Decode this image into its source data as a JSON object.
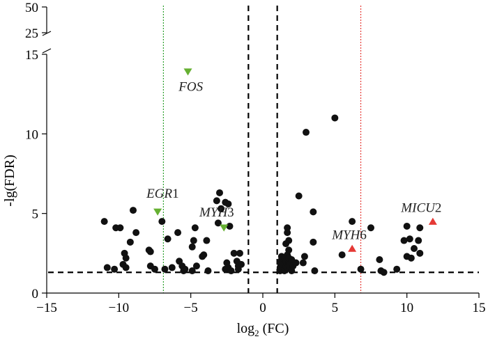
{
  "chart_data": {
    "type": "scatter",
    "title": "",
    "xlabel_base": "log",
    "xlabel_sub": "2",
    "xlabel_rest": " (FC)",
    "ylabel": "-lg(FDR)",
    "xlim": [
      -15,
      15
    ],
    "ylim": [
      0,
      15
    ],
    "ylim_break": [
      25,
      50
    ],
    "x_ticks": [
      -15,
      -10,
      -5,
      0,
      5,
      10,
      15
    ],
    "x_tick_labels": [
      "−15",
      "−10",
      "−5",
      "0",
      "5",
      "10",
      "15"
    ],
    "y_ticks": [
      0,
      5,
      10,
      15
    ],
    "y_tick_labels": [
      "0",
      "5",
      "10",
      "15"
    ],
    "y_break_ticks": [
      25,
      50
    ],
    "y_break_tick_labels": [
      "25",
      "50"
    ],
    "thresholds": {
      "fc_inner": [
        -1,
        1
      ],
      "fdr_line": 1.3,
      "green_line": -6.9,
      "red_line": 6.8
    },
    "colors": {
      "points": "#111111",
      "down_marker": "#66b032",
      "up_marker": "#e53935",
      "green_line": "#2ea02e",
      "red_line": "#e53935",
      "dashed": "#000000"
    },
    "points": [
      [
        -11,
        4.5
      ],
      [
        -10.2,
        4.1
      ],
      [
        -9.9,
        4.1
      ],
      [
        -9.7,
        1.8
      ],
      [
        -9.6,
        2.5
      ],
      [
        -9.5,
        2.2
      ],
      [
        -9.5,
        1.6
      ],
      [
        -10.3,
        1.5
      ],
      [
        -10.8,
        1.6
      ],
      [
        -9.2,
        3.2
      ],
      [
        -9,
        5.2
      ],
      [
        -8.8,
        3.8
      ],
      [
        -7.9,
        2.7
      ],
      [
        -7.8,
        2.6
      ],
      [
        -7.8,
        1.7
      ],
      [
        -7.5,
        1.5
      ],
      [
        -7,
        4.5
      ],
      [
        -6.8,
        1.5
      ],
      [
        -6.3,
        1.6
      ],
      [
        -6.6,
        3.4
      ],
      [
        -5.9,
        3.8
      ],
      [
        -5.8,
        2
      ],
      [
        -5.6,
        1.7
      ],
      [
        -5.5,
        1.4
      ],
      [
        -5.4,
        1.5
      ],
      [
        -4.9,
        2.9
      ],
      [
        -4.8,
        3.3
      ],
      [
        -4.7,
        4.1
      ],
      [
        -4.9,
        1.4
      ],
      [
        -4.6,
        1.7
      ],
      [
        -4.2,
        2.3
      ],
      [
        -4.1,
        2.4
      ],
      [
        -3.9,
        3.3
      ],
      [
        -3.8,
        1.4
      ],
      [
        -3.2,
        5.8
      ],
      [
        -3,
        6.3
      ],
      [
        -3.1,
        4.4
      ],
      [
        -2.9,
        5.3
      ],
      [
        -2.6,
        5.7
      ],
      [
        -2.4,
        5.6
      ],
      [
        -2.3,
        4.2
      ],
      [
        -2.6,
        1.5
      ],
      [
        -2.5,
        1.9
      ],
      [
        -2.4,
        1.6
      ],
      [
        -2.2,
        1.4
      ],
      [
        -2,
        2.5
      ],
      [
        -1.8,
        2
      ],
      [
        -1.7,
        1.7
      ],
      [
        -1.6,
        2.5
      ],
      [
        -1.5,
        1.8
      ],
      [
        -1.7,
        1.5
      ],
      [
        1.2,
        1.4
      ],
      [
        1.2,
        1.6
      ],
      [
        1.2,
        1.9
      ],
      [
        1.3,
        2.1
      ],
      [
        1.3,
        2.3
      ],
      [
        1.4,
        1.5
      ],
      [
        1.4,
        1.8
      ],
      [
        1.5,
        2.2
      ],
      [
        1.5,
        1.4
      ],
      [
        1.6,
        1.7
      ],
      [
        1.6,
        2
      ],
      [
        1.7,
        2.4
      ],
      [
        1.7,
        1.6
      ],
      [
        1.8,
        1.9
      ],
      [
        1.8,
        2.2
      ],
      [
        1.9,
        1.5
      ],
      [
        1.9,
        1.8
      ],
      [
        2,
        2.1
      ],
      [
        2,
        1.4
      ],
      [
        1.7,
        4.1
      ],
      [
        1.7,
        3.8
      ],
      [
        1.8,
        3.3
      ],
      [
        1.8,
        2.7
      ],
      [
        1.6,
        3.1
      ],
      [
        2.1,
        1.7
      ],
      [
        2.3,
        1.9
      ],
      [
        2.5,
        6.1
      ],
      [
        2.8,
        1.9
      ],
      [
        2.9,
        2.3
      ],
      [
        3,
        10.1
      ],
      [
        3.5,
        5.1
      ],
      [
        3.6,
        1.4
      ],
      [
        3.5,
        3.2
      ],
      [
        5,
        11
      ],
      [
        5.5,
        2.4
      ],
      [
        6.2,
        4.5
      ],
      [
        6.8,
        1.5
      ],
      [
        7.5,
        4.1
      ],
      [
        8.1,
        2.1
      ],
      [
        8.2,
        1.4
      ],
      [
        8.4,
        1.3
      ],
      [
        9.3,
        1.5
      ],
      [
        9.8,
        3.3
      ],
      [
        10,
        4.2
      ],
      [
        10,
        2.3
      ],
      [
        10.2,
        3.4
      ],
      [
        10.3,
        2.2
      ],
      [
        10.5,
        2.8
      ],
      [
        10.8,
        3.3
      ],
      [
        10.9,
        4.1
      ],
      [
        10.9,
        2.5
      ]
    ],
    "highlights": [
      {
        "label": "FOS",
        "number": "",
        "x": -5.2,
        "y": 13.9,
        "marker": "down",
        "label_x": -5.0,
        "label_y": 12.7
      },
      {
        "label": "EGR",
        "number": "1",
        "x": -7.3,
        "y": 5.1,
        "marker": "down",
        "label_x": -6.95,
        "label_y": 6.0
      },
      {
        "label": "MYH",
        "number": "3",
        "x": -2.7,
        "y": 4.1,
        "marker": "down",
        "label_x": -3.2,
        "label_y": 4.8
      },
      {
        "label": "MYH",
        "number": "6",
        "x": 6.2,
        "y": 2.8,
        "marker": "up",
        "label_x": 6.0,
        "label_y": 3.4
      },
      {
        "label": "MICU",
        "number": "2",
        "x": 11.8,
        "y": 4.5,
        "marker": "up",
        "label_x": 11.0,
        "label_y": 5.1
      }
    ]
  }
}
